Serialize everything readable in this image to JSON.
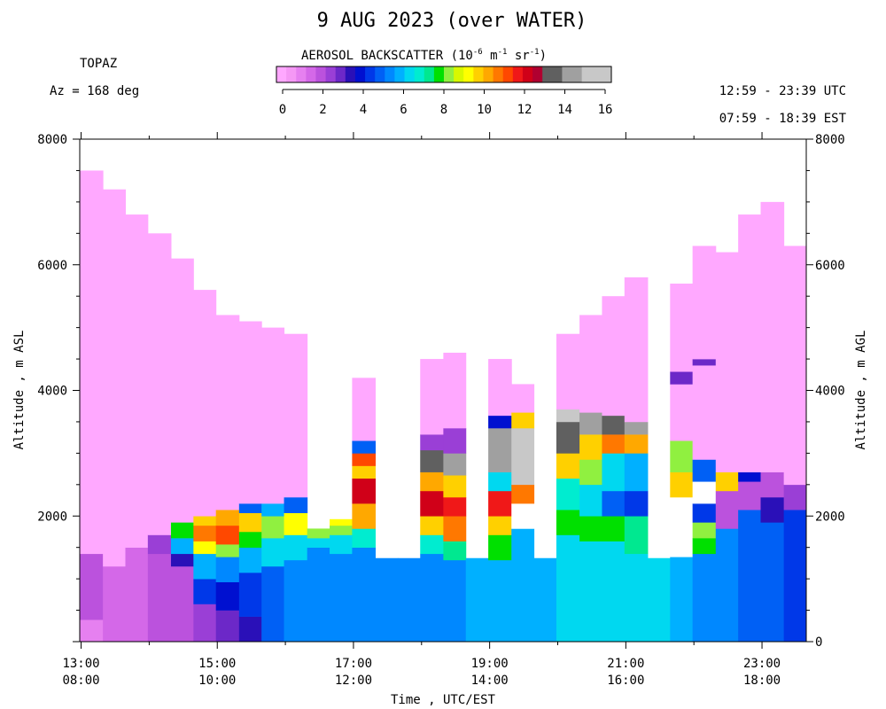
{
  "header": {
    "title": "9 AUG 2023 (over WATER)",
    "instrument": "TOPAZ",
    "azimuth": "Az = 168 deg",
    "utc_range": "12:59 - 23:39 UTC",
    "est_range": "07:59 - 18:39 EST"
  },
  "colorbar": {
    "title_main": "AEROSOL BACKSCATTER (10",
    "exp1": "-6",
    "unit_m": " m",
    "exp2": "-1",
    "unit_sr": " sr",
    "exp3": "-1",
    "close": ")",
    "ticks": [
      "0",
      "2",
      "4",
      "6",
      "8",
      "10",
      "12",
      "14",
      "16"
    ],
    "colors": [
      "#ffa8ff",
      "#f598f5",
      "#e680f0",
      "#d468e8",
      "#bb52dd",
      "#9a3fd6",
      "#6c28c8",
      "#2a10b8",
      "#0010d0",
      "#0038e8",
      "#0060f5",
      "#0088ff",
      "#00b0ff",
      "#00d8f0",
      "#00ecd0",
      "#00e890",
      "#00e000",
      "#90f040",
      "#d8f800",
      "#ffff00",
      "#ffd000",
      "#ffa800",
      "#ff7800",
      "#ff4800",
      "#f01818",
      "#d00018",
      "#b00030",
      "#606060",
      "#606060",
      "#a0a0a0",
      "#a0a0a0",
      "#c8c8c8",
      "#c8c8c8",
      "#c8c8c8"
    ]
  },
  "chart_data": {
    "type": "heatmap",
    "xlabel": "Time , UTC/EST",
    "ylabel_left": "Altitude , m ASL",
    "ylabel_right": "Altitude , m AGL",
    "x_ticks_utc": [
      "13:00",
      "15:00",
      "17:00",
      "19:00",
      "21:00",
      "23:00"
    ],
    "x_ticks_est": [
      "08:00",
      "10:00",
      "12:00",
      "14:00",
      "16:00",
      "18:00"
    ],
    "x_range_hours_utc": [
      12.98,
      23.65
    ],
    "ylim_asl": [
      0,
      8000
    ],
    "y_ticks_left": [
      "2000",
      "4000",
      "6000",
      "8000"
    ],
    "y_ticks_right": [
      "0",
      "2000",
      "4000",
      "6000",
      "8000"
    ],
    "columns": [
      {
        "t": 12.98,
        "top": 7500,
        "layers": [
          [
            0,
            350,
            "#e680f0"
          ],
          [
            350,
            1400,
            "#bb52dd"
          ],
          [
            1400,
            7500,
            "#ffa8ff"
          ]
        ]
      },
      {
        "t": 13.32,
        "top": 7200,
        "layers": [
          [
            0,
            1200,
            "#d468e8"
          ],
          [
            1200,
            7200,
            "#ffa8ff"
          ]
        ]
      },
      {
        "t": 13.65,
        "top": 6800,
        "layers": [
          [
            0,
            1500,
            "#d468e8"
          ],
          [
            1500,
            6800,
            "#ffa8ff"
          ]
        ]
      },
      {
        "t": 13.98,
        "top": 6500,
        "layers": [
          [
            0,
            1400,
            "#bb52dd"
          ],
          [
            1400,
            1700,
            "#9a3fd6"
          ],
          [
            1700,
            6500,
            "#ffa8ff"
          ]
        ]
      },
      {
        "t": 14.32,
        "top": 6100,
        "layers": [
          [
            0,
            1200,
            "#bb52dd"
          ],
          [
            1200,
            1400,
            "#2a10b8"
          ],
          [
            1400,
            1650,
            "#00b0ff"
          ],
          [
            1650,
            1900,
            "#00e000"
          ],
          [
            1900,
            6100,
            "#ffa8ff"
          ]
        ]
      },
      {
        "t": 14.65,
        "top": 5600,
        "layers": [
          [
            0,
            600,
            "#9a3fd6"
          ],
          [
            600,
            1000,
            "#0038e8"
          ],
          [
            1000,
            1400,
            "#00b0ff"
          ],
          [
            1400,
            1600,
            "#ffff00"
          ],
          [
            1600,
            1850,
            "#ff7800"
          ],
          [
            1850,
            2000,
            "#ffd000"
          ],
          [
            2000,
            5600,
            "#ffa8ff"
          ]
        ]
      },
      {
        "t": 14.98,
        "top": 5200,
        "layers": [
          [
            0,
            500,
            "#6c28c8"
          ],
          [
            500,
            950,
            "#0010d0"
          ],
          [
            950,
            1350,
            "#0088ff"
          ],
          [
            1350,
            1550,
            "#90f040"
          ],
          [
            1550,
            1850,
            "#ff4800"
          ],
          [
            1850,
            2100,
            "#ffa800"
          ],
          [
            2100,
            5200,
            "#ffa8ff"
          ]
        ]
      },
      {
        "t": 15.32,
        "top": 5100,
        "layers": [
          [
            0,
            400,
            "#2a10b8"
          ],
          [
            400,
            1100,
            "#0038e8"
          ],
          [
            1100,
            1500,
            "#00b0ff"
          ],
          [
            1500,
            1750,
            "#00e000"
          ],
          [
            1750,
            2050,
            "#ffd000"
          ],
          [
            2050,
            2200,
            "#0060f5"
          ],
          [
            2200,
            5100,
            "#ffa8ff"
          ]
        ]
      },
      {
        "t": 15.65,
        "top": 5000,
        "layers": [
          [
            0,
            1200,
            "#0060f5"
          ],
          [
            1200,
            1650,
            "#00d8f0"
          ],
          [
            1650,
            2000,
            "#90f040"
          ],
          [
            2000,
            2200,
            "#00b0ff"
          ],
          [
            2200,
            5000,
            "#ffa8ff"
          ]
        ]
      },
      {
        "t": 15.98,
        "top": 4900,
        "layers": [
          [
            0,
            1300,
            "#0088ff"
          ],
          [
            1300,
            1700,
            "#00d8f0"
          ],
          [
            1700,
            2050,
            "#ffff00"
          ],
          [
            2050,
            2300,
            "#0060f5"
          ],
          [
            2300,
            4900,
            "#ffa8ff"
          ]
        ]
      },
      {
        "t": 16.32,
        "top": 1800,
        "layers": [
          [
            0,
            1500,
            "#0088ff"
          ],
          [
            1500,
            1650,
            "#00d8f0"
          ],
          [
            1650,
            1800,
            "#90f040"
          ]
        ]
      },
      {
        "t": 16.65,
        "top": 1950,
        "layers": [
          [
            0,
            1400,
            "#0088ff"
          ],
          [
            1400,
            1700,
            "#00d8f0"
          ],
          [
            1700,
            1850,
            "#90f040"
          ],
          [
            1850,
            1950,
            "#ffff00"
          ]
        ]
      },
      {
        "t": 16.98,
        "top": 4200,
        "layers": [
          [
            0,
            1500,
            "#0088ff"
          ],
          [
            1500,
            1800,
            "#00ecd0"
          ],
          [
            1800,
            2200,
            "#ffa800"
          ],
          [
            2200,
            2600,
            "#d00018"
          ],
          [
            2600,
            2800,
            "#ffd000"
          ],
          [
            2800,
            3000,
            "#ff4800"
          ],
          [
            3000,
            3200,
            "#0060f5"
          ],
          [
            3200,
            4200,
            "#ffa8ff"
          ]
        ]
      },
      {
        "t": 17.32,
        "top": 1330,
        "layers": [
          [
            0,
            1330,
            "#0088ff"
          ]
        ]
      },
      {
        "t": 17.65,
        "top": 1330,
        "layers": [
          [
            0,
            1330,
            "#0088ff"
          ]
        ]
      },
      {
        "t": 17.98,
        "top": 4500,
        "layers": [
          [
            0,
            1400,
            "#0088ff"
          ],
          [
            1400,
            1700,
            "#00ecd0"
          ],
          [
            1700,
            2000,
            "#ffd000"
          ],
          [
            2000,
            2400,
            "#d00018"
          ],
          [
            2400,
            2700,
            "#ffa800"
          ],
          [
            2700,
            3050,
            "#606060"
          ],
          [
            3050,
            3300,
            "#9a3fd6"
          ],
          [
            3300,
            4500,
            "#ffa8ff"
          ]
        ]
      },
      {
        "t": 18.32,
        "top": 4600,
        "layers": [
          [
            0,
            1300,
            "#0088ff"
          ],
          [
            1300,
            1600,
            "#00e890"
          ],
          [
            1600,
            2000,
            "#ff7800"
          ],
          [
            2000,
            2300,
            "#f01818"
          ],
          [
            2300,
            2650,
            "#ffd000"
          ],
          [
            2650,
            3000,
            "#a0a0a0"
          ],
          [
            3000,
            3400,
            "#9a3fd6"
          ],
          [
            3400,
            4600,
            "#ffa8ff"
          ]
        ]
      },
      {
        "t": 18.65,
        "top": 1330,
        "layers": [
          [
            0,
            1330,
            "#00b0ff"
          ]
        ]
      },
      {
        "t": 18.98,
        "top": 4500,
        "layers": [
          [
            0,
            1300,
            "#00b0ff"
          ],
          [
            1300,
            1700,
            "#00e000"
          ],
          [
            1700,
            2000,
            "#ffd000"
          ],
          [
            2000,
            2400,
            "#f01818"
          ],
          [
            2400,
            2700,
            "#00d8f0"
          ],
          [
            2700,
            3400,
            "#a0a0a0"
          ],
          [
            3400,
            3600,
            "#0010d0"
          ],
          [
            3600,
            4500,
            "#ffa8ff"
          ]
        ]
      },
      {
        "t": 19.32,
        "top": 4100,
        "layers": [
          [
            0,
            1800,
            "#00b0ff"
          ],
          [
            1800,
            2200,
            "#ffffff"
          ],
          [
            2200,
            2500,
            "#ff7800"
          ],
          [
            2500,
            3400,
            "#c8c8c8"
          ],
          [
            3400,
            3650,
            "#ffd000"
          ],
          [
            3650,
            4100,
            "#ffa8ff"
          ]
        ]
      },
      {
        "t": 19.65,
        "top": 1330,
        "layers": [
          [
            0,
            1330,
            "#00b0ff"
          ]
        ]
      },
      {
        "t": 19.98,
        "top": 4900,
        "layers": [
          [
            0,
            1700,
            "#00d8f0"
          ],
          [
            1700,
            2100,
            "#00e000"
          ],
          [
            2100,
            2600,
            "#00ecd0"
          ],
          [
            2600,
            3000,
            "#ffd000"
          ],
          [
            3000,
            3500,
            "#606060"
          ],
          [
            3500,
            3700,
            "#c8c8c8"
          ],
          [
            3700,
            4900,
            "#ffa8ff"
          ]
        ]
      },
      {
        "t": 20.32,
        "top": 5200,
        "layers": [
          [
            0,
            1600,
            "#00d8f0"
          ],
          [
            1600,
            2000,
            "#00e000"
          ],
          [
            2000,
            2500,
            "#00d8f0"
          ],
          [
            2500,
            2900,
            "#90f040"
          ],
          [
            2900,
            3300,
            "#ffd000"
          ],
          [
            3300,
            3650,
            "#a0a0a0"
          ],
          [
            3650,
            5200,
            "#ffa8ff"
          ]
        ]
      },
      {
        "t": 20.65,
        "top": 5500,
        "layers": [
          [
            0,
            1600,
            "#00d8f0"
          ],
          [
            1600,
            2000,
            "#00e000"
          ],
          [
            2000,
            2400,
            "#0060f5"
          ],
          [
            2400,
            3000,
            "#00d8f0"
          ],
          [
            3000,
            3300,
            "#ff7800"
          ],
          [
            3300,
            3600,
            "#606060"
          ],
          [
            3600,
            5500,
            "#ffa8ff"
          ]
        ]
      },
      {
        "t": 20.98,
        "top": 5800,
        "layers": [
          [
            0,
            1400,
            "#00d8f0"
          ],
          [
            1400,
            2000,
            "#00e890"
          ],
          [
            2000,
            2400,
            "#0038e8"
          ],
          [
            2400,
            3000,
            "#00b0ff"
          ],
          [
            3000,
            3300,
            "#ffa800"
          ],
          [
            3300,
            3500,
            "#a0a0a0"
          ],
          [
            3500,
            5800,
            "#ffa8ff"
          ]
        ]
      },
      {
        "t": 21.32,
        "top": 1330,
        "layers": [
          [
            0,
            1330,
            "#00d8f0"
          ]
        ]
      },
      {
        "t": 21.65,
        "top": 5700,
        "layers": [
          [
            0,
            1350,
            "#00b0ff"
          ],
          [
            1350,
            2300,
            "#ffffff"
          ],
          [
            2300,
            2700,
            "#ffd000"
          ],
          [
            2700,
            3200,
            "#90f040"
          ],
          [
            3200,
            4100,
            "#ffa8ff"
          ],
          [
            4100,
            4300,
            "#6c28c8"
          ],
          [
            4300,
            5700,
            "#ffa8ff"
          ]
        ]
      },
      {
        "t": 21.98,
        "top": 6300,
        "layers": [
          [
            0,
            1400,
            "#0088ff"
          ],
          [
            1400,
            1650,
            "#00e000"
          ],
          [
            1650,
            1900,
            "#90f040"
          ],
          [
            1900,
            2200,
            "#0038e8"
          ],
          [
            2200,
            2550,
            "#ffffff"
          ],
          [
            2550,
            2900,
            "#0060f5"
          ],
          [
            2900,
            4400,
            "#ffa8ff"
          ],
          [
            4400,
            4500,
            "#6c28c8"
          ],
          [
            4500,
            6300,
            "#ffa8ff"
          ]
        ]
      },
      {
        "t": 22.32,
        "top": 6200,
        "layers": [
          [
            0,
            1800,
            "#0088ff"
          ],
          [
            1800,
            2400,
            "#bb52dd"
          ],
          [
            2400,
            2700,
            "#ffd000"
          ],
          [
            2700,
            6200,
            "#ffa8ff"
          ]
        ]
      },
      {
        "t": 22.65,
        "top": 6800,
        "layers": [
          [
            0,
            2100,
            "#0060f5"
          ],
          [
            2100,
            2550,
            "#bb52dd"
          ],
          [
            2550,
            2700,
            "#0010d0"
          ],
          [
            2700,
            6800,
            "#ffa8ff"
          ]
        ]
      },
      {
        "t": 22.98,
        "top": 7000,
        "layers": [
          [
            0,
            1900,
            "#0060f5"
          ],
          [
            1900,
            2300,
            "#2a10b8"
          ],
          [
            2300,
            2700,
            "#bb52dd"
          ],
          [
            2700,
            7000,
            "#ffa8ff"
          ]
        ]
      },
      {
        "t": 23.32,
        "top": 6300,
        "layers": [
          [
            0,
            2100,
            "#0038e8"
          ],
          [
            2100,
            2500,
            "#9a3fd6"
          ],
          [
            2500,
            6300,
            "#ffa8ff"
          ]
        ]
      }
    ]
  }
}
